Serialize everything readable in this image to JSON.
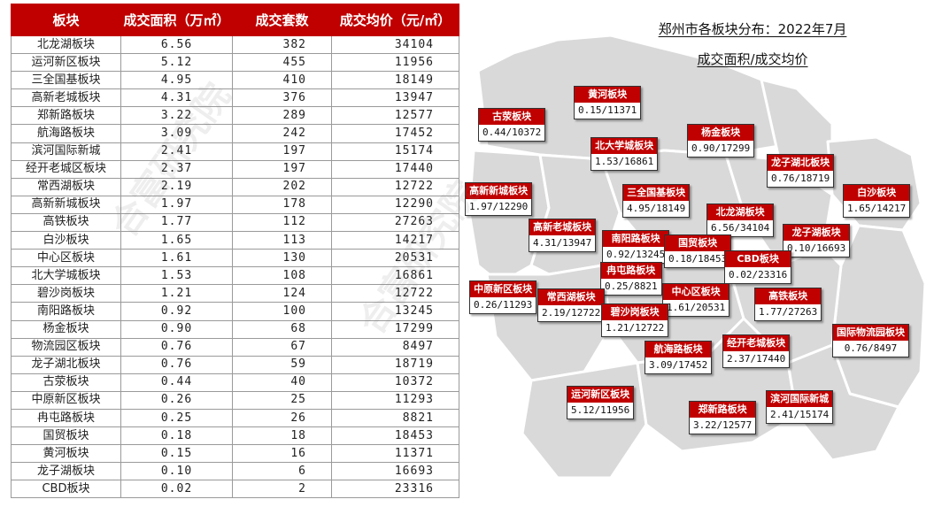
{
  "table": {
    "headers": [
      "板块",
      "成交面积（万㎡）",
      "成交套数",
      "成交均价（元/㎡）"
    ],
    "rows": [
      [
        "北龙湖板块",
        "6.56",
        "382",
        "34104"
      ],
      [
        "运河新区板块",
        "5.12",
        "455",
        "11956"
      ],
      [
        "三全国基板块",
        "4.95",
        "410",
        "18149"
      ],
      [
        "高新老城板块",
        "4.31",
        "376",
        "13947"
      ],
      [
        "郑新路板块",
        "3.22",
        "289",
        "12577"
      ],
      [
        "航海路板块",
        "3.09",
        "242",
        "17452"
      ],
      [
        "滨河国际新城",
        "2.41",
        "197",
        "15174"
      ],
      [
        "经开老城区板块",
        "2.37",
        "197",
        "17440"
      ],
      [
        "常西湖板块",
        "2.19",
        "202",
        "12722"
      ],
      [
        "高新新城板块",
        "1.97",
        "178",
        "12290"
      ],
      [
        "高铁板块",
        "1.77",
        "112",
        "27263"
      ],
      [
        "白沙板块",
        "1.65",
        "113",
        "14217"
      ],
      [
        "中心区板块",
        "1.61",
        "130",
        "20531"
      ],
      [
        "北大学城板块",
        "1.53",
        "108",
        "16861"
      ],
      [
        "碧沙岗板块",
        "1.21",
        "124",
        "12722"
      ],
      [
        "南阳路板块",
        "0.92",
        "100",
        "13245"
      ],
      [
        "杨金板块",
        "0.90",
        "68",
        "17299"
      ],
      [
        "物流园区板块",
        "0.76",
        "67",
        "8497"
      ],
      [
        "龙子湖北板块",
        "0.76",
        "59",
        "18719"
      ],
      [
        "古荥板块",
        "0.44",
        "40",
        "10372"
      ],
      [
        "中原新区板块",
        "0.26",
        "25",
        "11293"
      ],
      [
        "冉屯路板块",
        "0.25",
        "26",
        "8821"
      ],
      [
        "国贸板块",
        "0.18",
        "18",
        "18453"
      ],
      [
        "黄河板块",
        "0.15",
        "16",
        "11371"
      ],
      [
        "龙子湖板块",
        "0.10",
        "6",
        "16693"
      ],
      [
        "CBD板块",
        "0.02",
        "2",
        "23316"
      ]
    ]
  },
  "map": {
    "title": "郑州市各板块分布：2022年7月",
    "subtitle": "成交面积/成交均价",
    "labels": [
      {
        "name": "黄河板块",
        "value": "0.15/11371"
      },
      {
        "name": "古荥板块",
        "value": "0.44/10372"
      },
      {
        "name": "北大学城板块",
        "value": "1.53/16861"
      },
      {
        "name": "杨金板块",
        "value": "0.90/17299"
      },
      {
        "name": "龙子湖北板块",
        "value": "0.76/18719"
      },
      {
        "name": "高新新城板块",
        "value": "1.97/12290"
      },
      {
        "name": "三全国基板块",
        "value": "4.95/18149"
      },
      {
        "name": "白沙板块",
        "value": "1.65/14217"
      },
      {
        "name": "北龙湖板块",
        "value": "6.56/34104"
      },
      {
        "name": "高新老城板块",
        "value": "4.31/13947"
      },
      {
        "name": "南阳路板块",
        "value": "0.92/13245"
      },
      {
        "name": "国贸板块",
        "value": "0.18/18453"
      },
      {
        "name": "龙子湖板块",
        "value": "0.10/16693"
      },
      {
        "name": "CBD板块",
        "value": "0.02/23316"
      },
      {
        "name": "冉屯路板块",
        "value": "0.25/8821"
      },
      {
        "name": "中原新区板块",
        "value": "0.26/11293"
      },
      {
        "name": "常西湖板块",
        "value": "2.19/12722"
      },
      {
        "name": "中心区板块",
        "value": "1.61/20531"
      },
      {
        "name": "高铁板块",
        "value": "1.77/27263"
      },
      {
        "name": "碧沙岗板块",
        "value": "1.21/12722"
      },
      {
        "name": "国际物流园板块",
        "value": "0.76/8497"
      },
      {
        "name": "航海路板块",
        "value": "3.09/17452"
      },
      {
        "name": "经开老城板块",
        "value": "2.37/17440"
      },
      {
        "name": "运河新区板块",
        "value": "5.12/11956"
      },
      {
        "name": "郑新路板块",
        "value": "3.22/12577"
      },
      {
        "name": "滨河国际新城",
        "value": "2.41/15174"
      }
    ]
  },
  "watermark": "合富研究院",
  "colors": {
    "accent": "#c00000",
    "map_fill": "#d9d9d9",
    "map_border": "#ffffff"
  },
  "chart_data": {
    "type": "table",
    "columns": [
      "板块",
      "成交面积（万㎡）",
      "成交套数",
      "成交均价（元/㎡）"
    ],
    "area": [
      6.56,
      5.12,
      4.95,
      4.31,
      3.22,
      3.09,
      2.41,
      2.37,
      2.19,
      1.97,
      1.77,
      1.65,
      1.61,
      1.53,
      1.21,
      0.92,
      0.9,
      0.76,
      0.76,
      0.44,
      0.26,
      0.25,
      0.18,
      0.15,
      0.1,
      0.02
    ],
    "units": [
      382,
      455,
      410,
      376,
      289,
      242,
      197,
      197,
      202,
      178,
      112,
      113,
      130,
      108,
      124,
      100,
      68,
      67,
      59,
      40,
      25,
      26,
      18,
      16,
      6,
      2
    ],
    "avg_price": [
      34104,
      11956,
      18149,
      13947,
      12577,
      17452,
      15174,
      17440,
      12722,
      12290,
      27263,
      14217,
      20531,
      16861,
      12722,
      13245,
      17299,
      8497,
      18719,
      10372,
      11293,
      8821,
      18453,
      11371,
      16693,
      23316
    ]
  }
}
